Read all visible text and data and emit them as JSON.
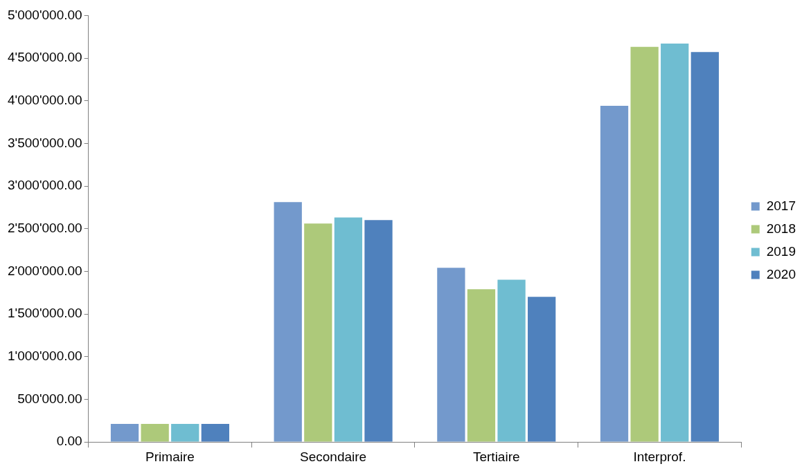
{
  "chart_data": {
    "type": "bar",
    "categories": [
      "Primaire",
      "Secondaire",
      "Tertiaire",
      "Interprof."
    ],
    "series": [
      {
        "name": "2017",
        "color": "#7399cc",
        "values": [
          220000,
          2820000,
          2050000,
          3950000
        ]
      },
      {
        "name": "2018",
        "color": "#adc97a",
        "values": [
          220000,
          2570000,
          1800000,
          4640000
        ]
      },
      {
        "name": "2019",
        "color": "#6fbdd1",
        "values": [
          220000,
          2640000,
          1910000,
          4680000
        ]
      },
      {
        "name": "2020",
        "color": "#4f81bd",
        "values": [
          220000,
          2610000,
          1710000,
          4580000
        ]
      }
    ],
    "ylim": [
      0,
      5000000
    ],
    "yticks": [
      {
        "value": 0,
        "label": "0.00"
      },
      {
        "value": 500000,
        "label": "500'000.00"
      },
      {
        "value": 1000000,
        "label": "1'000'000.00"
      },
      {
        "value": 1500000,
        "label": "1'500'000.00"
      },
      {
        "value": 2000000,
        "label": "2'000'000.00"
      },
      {
        "value": 2500000,
        "label": "2'500'000.00"
      },
      {
        "value": 3000000,
        "label": "3'000'000.00"
      },
      {
        "value": 3500000,
        "label": "3'500'000.00"
      },
      {
        "value": 4000000,
        "label": "4'000'000.00"
      },
      {
        "value": 4500000,
        "label": "4'500'000.00"
      },
      {
        "value": 5000000,
        "label": "5'000'000.00"
      }
    ],
    "grid": false,
    "legend": "right"
  }
}
